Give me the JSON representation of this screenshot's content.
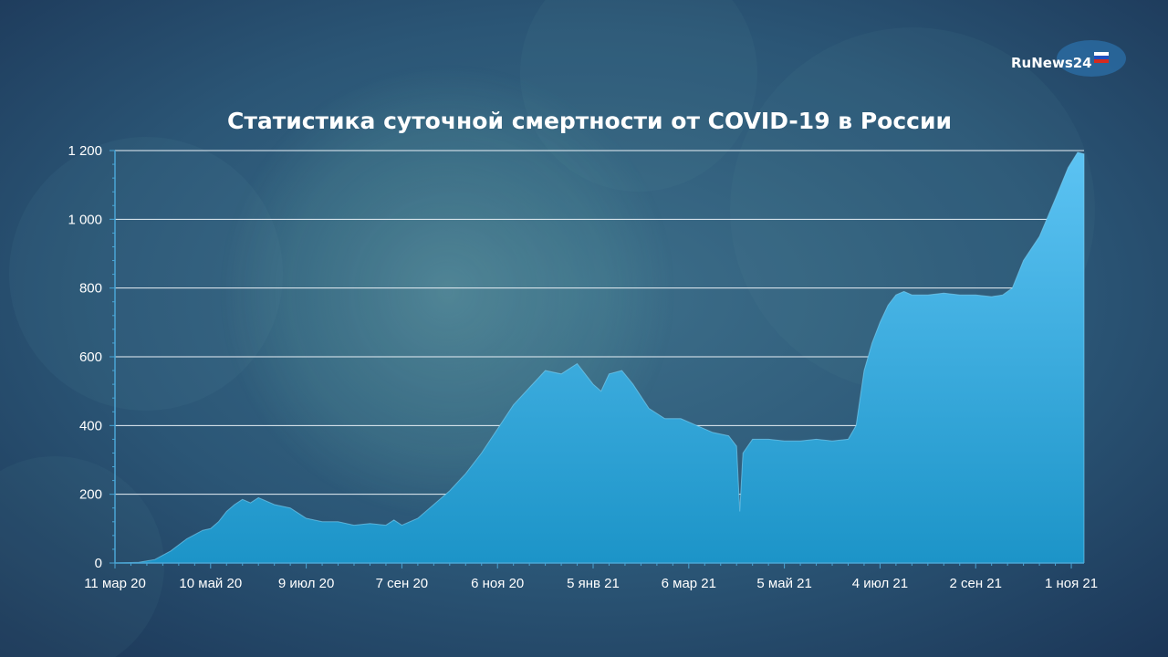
{
  "brand": {
    "name": "RuNews24"
  },
  "colors": {
    "background": "#25466a",
    "area_top": "#5cc3f3",
    "area_bottom": "#1c94c8",
    "grid": "#e8f0f6",
    "text": "#ffffff"
  },
  "chart_data": {
    "type": "area",
    "title": "Статистика суточной смертности от COVID-19 в России",
    "xlabel": "",
    "ylabel": "",
    "ylim": [
      0,
      1200
    ],
    "y_ticks": [
      0,
      200,
      400,
      600,
      800,
      1000,
      1200
    ],
    "y_tick_labels": [
      "0",
      "200",
      "400",
      "600",
      "800",
      "1 000",
      "1 200"
    ],
    "x_tick_labels": [
      "11 мар 20",
      "10 май 20",
      "9 июл 20",
      "7 сен 20",
      "6 ноя 20",
      "5 янв 21",
      "6 мар 21",
      "5 май 21",
      "4 июл 21",
      "2 сен 21",
      "1 ноя 21"
    ],
    "x_tick_days": [
      0,
      60,
      120,
      180,
      240,
      300,
      360,
      420,
      480,
      540,
      600
    ],
    "x_range": [
      0,
      608
    ],
    "grid": true,
    "legend": "none",
    "series": [
      {
        "values": [
          [
            0,
            0
          ],
          [
            15,
            2
          ],
          [
            25,
            10
          ],
          [
            35,
            35
          ],
          [
            45,
            70
          ],
          [
            55,
            95
          ],
          [
            60,
            100
          ],
          [
            65,
            120
          ],
          [
            70,
            150
          ],
          [
            75,
            170
          ],
          [
            80,
            185
          ],
          [
            85,
            175
          ],
          [
            90,
            190
          ],
          [
            100,
            170
          ],
          [
            110,
            160
          ],
          [
            120,
            130
          ],
          [
            130,
            120
          ],
          [
            140,
            120
          ],
          [
            150,
            110
          ],
          [
            160,
            115
          ],
          [
            170,
            110
          ],
          [
            175,
            125
          ],
          [
            180,
            110
          ],
          [
            190,
            130
          ],
          [
            200,
            170
          ],
          [
            210,
            210
          ],
          [
            220,
            260
          ],
          [
            230,
            320
          ],
          [
            240,
            390
          ],
          [
            250,
            460
          ],
          [
            260,
            510
          ],
          [
            270,
            560
          ],
          [
            280,
            550
          ],
          [
            290,
            580
          ],
          [
            300,
            520
          ],
          [
            305,
            500
          ],
          [
            310,
            550
          ],
          [
            318,
            560
          ],
          [
            325,
            520
          ],
          [
            335,
            450
          ],
          [
            345,
            420
          ],
          [
            355,
            420
          ],
          [
            365,
            400
          ],
          [
            375,
            380
          ],
          [
            385,
            370
          ],
          [
            390,
            340
          ],
          [
            392,
            150
          ],
          [
            394,
            320
          ],
          [
            400,
            360
          ],
          [
            410,
            360
          ],
          [
            420,
            355
          ],
          [
            430,
            355
          ],
          [
            440,
            360
          ],
          [
            450,
            355
          ],
          [
            460,
            360
          ],
          [
            465,
            400
          ],
          [
            470,
            560
          ],
          [
            475,
            640
          ],
          [
            480,
            700
          ],
          [
            485,
            750
          ],
          [
            490,
            780
          ],
          [
            495,
            790
          ],
          [
            500,
            780
          ],
          [
            510,
            780
          ],
          [
            520,
            785
          ],
          [
            530,
            780
          ],
          [
            540,
            780
          ],
          [
            550,
            775
          ],
          [
            557,
            780
          ],
          [
            563,
            800
          ],
          [
            570,
            880
          ],
          [
            580,
            950
          ],
          [
            590,
            1060
          ],
          [
            598,
            1150
          ],
          [
            604,
            1195
          ],
          [
            608,
            1190
          ]
        ]
      }
    ]
  }
}
